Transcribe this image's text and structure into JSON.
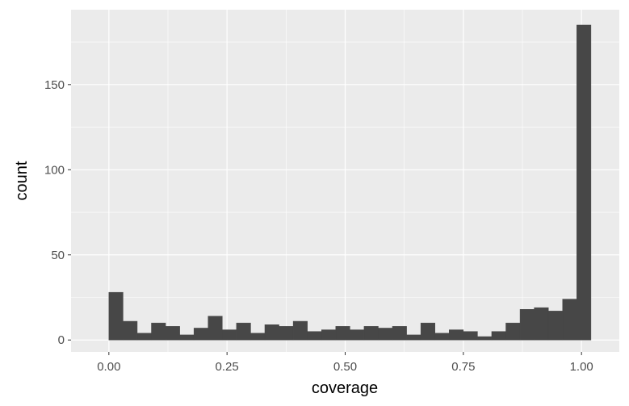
{
  "chart_data": {
    "type": "bar",
    "subtype": "histogram",
    "title": "",
    "xlabel": "coverage",
    "ylabel": "count",
    "xlim": [
      -0.08,
      1.08
    ],
    "ylim": [
      -7,
      194
    ],
    "bin_start": 0.0,
    "bin_width": 0.03,
    "counts": [
      28,
      11,
      4,
      10,
      8,
      3,
      7,
      14,
      6,
      10,
      4,
      9,
      8,
      11,
      5,
      6,
      8,
      6,
      8,
      7,
      8,
      3,
      10,
      4,
      6,
      5,
      2,
      5,
      10,
      18,
      19,
      17,
      24,
      185
    ],
    "x_ticks": [
      {
        "value": 0.0,
        "label": "0.00"
      },
      {
        "value": 0.25,
        "label": "0.25"
      },
      {
        "value": 0.5,
        "label": "0.50"
      },
      {
        "value": 0.75,
        "label": "0.75"
      },
      {
        "value": 1.0,
        "label": "1.00"
      }
    ],
    "y_ticks": [
      {
        "value": 0,
        "label": "0"
      },
      {
        "value": 50,
        "label": "50"
      },
      {
        "value": 100,
        "label": "100"
      },
      {
        "value": 150,
        "label": "150"
      }
    ],
    "grid": true,
    "legend": "none",
    "colors": {
      "panel_background": "#EBEBEB",
      "grid_major": "#FFFFFF",
      "bar_fill": "#474747",
      "tick_text": "#4D4D4D",
      "axis_title": "#000000"
    }
  }
}
